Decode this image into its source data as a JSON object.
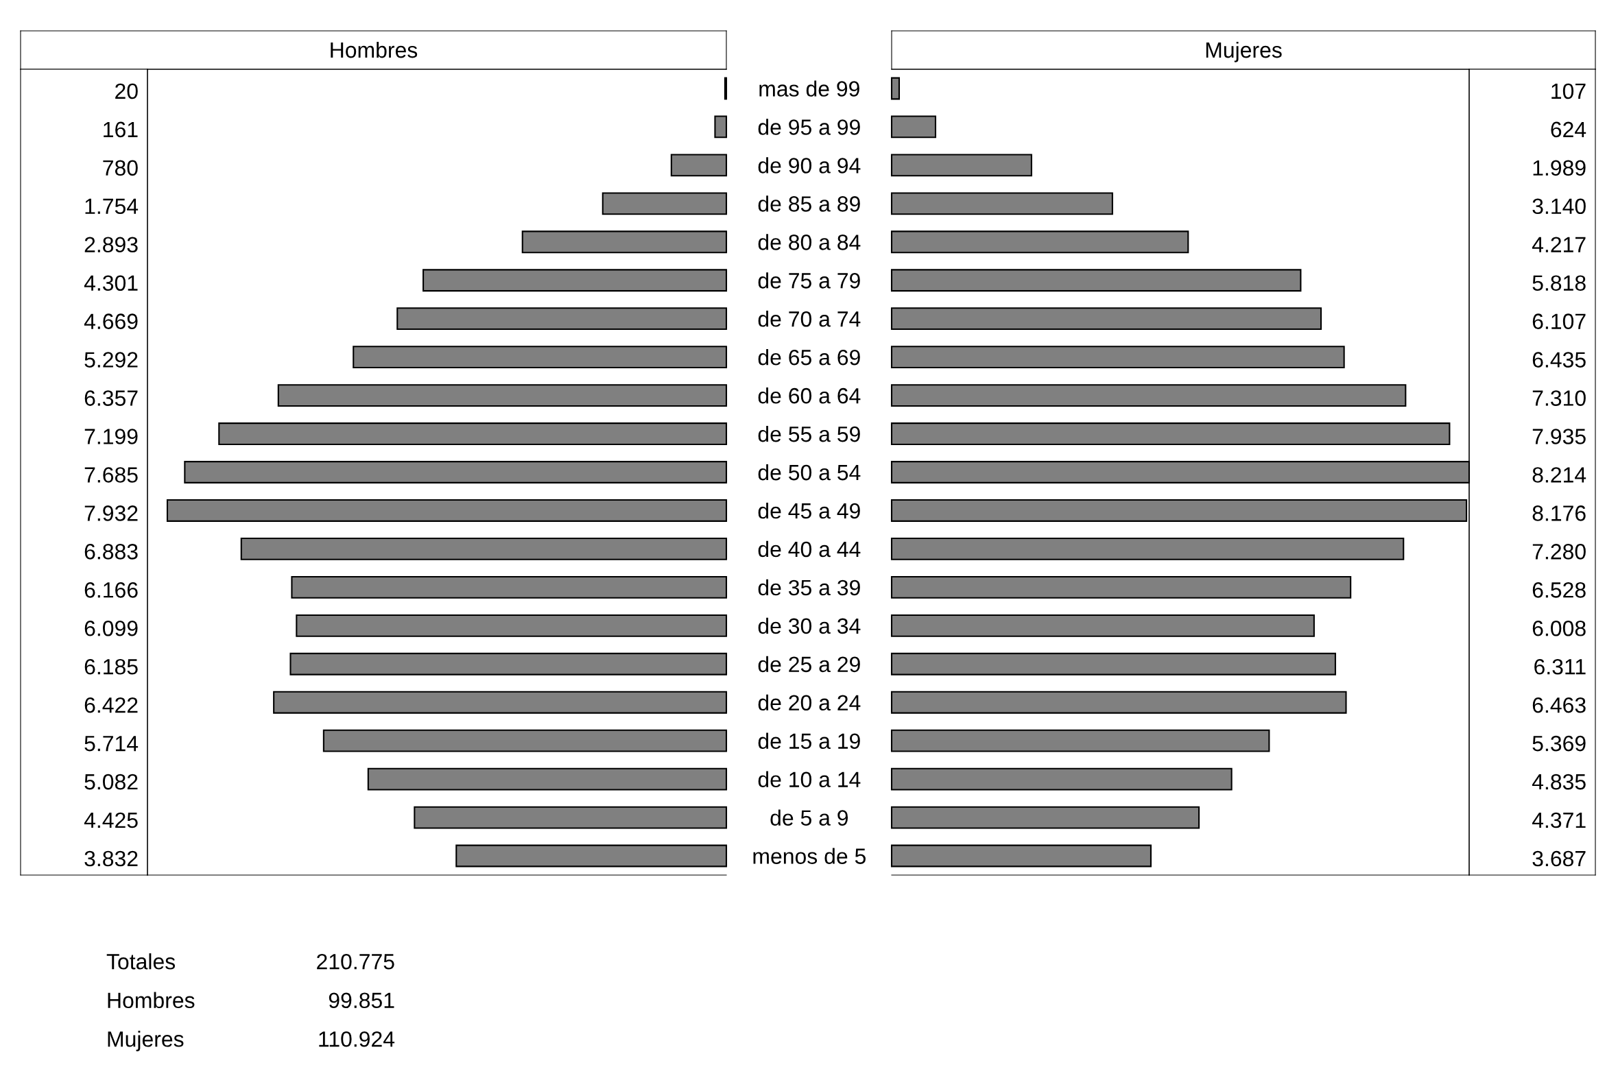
{
  "chart_data": [
    {
      "type": "bar",
      "orientation": "horizontal",
      "title": "Hombres",
      "color": "#808080",
      "xlim": [
        8214,
        0
      ],
      "tick_labels": "y",
      "categories": [
        "mas de 99",
        "de 95 a 99",
        "de 90 a 94",
        "de 85 a 89",
        "de 80 a 84",
        "de 75 a 79",
        "de 70 a 74",
        "de 65 a 69",
        "de 60 a 64",
        "de 55 a 59",
        "de 50 a 54",
        "de 45 a 49",
        "de 40 a 44",
        "de 35 a 39",
        "de 30 a 34",
        "de 25 a 29",
        "de 20 a 24",
        "de 15 a 19",
        "de 10 a 14",
        "de 5 a 9",
        "menos de 5"
      ],
      "values": [
        20,
        161,
        780,
        1754,
        2893,
        4301,
        4669,
        5292,
        6357,
        7199,
        7685,
        7932,
        6883,
        6166,
        6099,
        6185,
        6422,
        5714,
        5082,
        4425,
        3832
      ],
      "value_labels": [
        "20",
        "161",
        "780",
        "1.754",
        "2.893",
        "4.301",
        "4.669",
        "5.292",
        "6.357",
        "7.199",
        "7.685",
        "7.932",
        "6.883",
        "6.166",
        "6.099",
        "6.185",
        "6.422",
        "5.714",
        "5.082",
        "4.425",
        "3.832"
      ],
      "annotations": [
        "Totales",
        "210.775",
        "Hombres",
        "99.851",
        "Mujeres",
        "110.924"
      ]
    },
    {
      "type": "bar",
      "orientation": "horizontal",
      "title": "Mujeres",
      "color": "#808080",
      "xlim": [
        0,
        8214
      ],
      "tick_labels": false,
      "values": [
        107,
        624,
        1989,
        3140,
        4217,
        5818,
        6107,
        6435,
        7310,
        7935,
        8214,
        8176,
        7280,
        6528,
        6008,
        6311,
        6463,
        5369,
        4835,
        4371,
        3687
      ],
      "value_labels": [
        "107",
        "624",
        "1.989",
        "3.140",
        "4.217",
        "5.818",
        "6.107",
        "6.435",
        "7.310",
        "7.935",
        "8.214",
        "8.176",
        "7.280",
        "6.528",
        "6.008",
        "6.311",
        "6.463",
        "5.369",
        "4.835",
        "4.371",
        "3.687"
      ]
    }
  ]
}
